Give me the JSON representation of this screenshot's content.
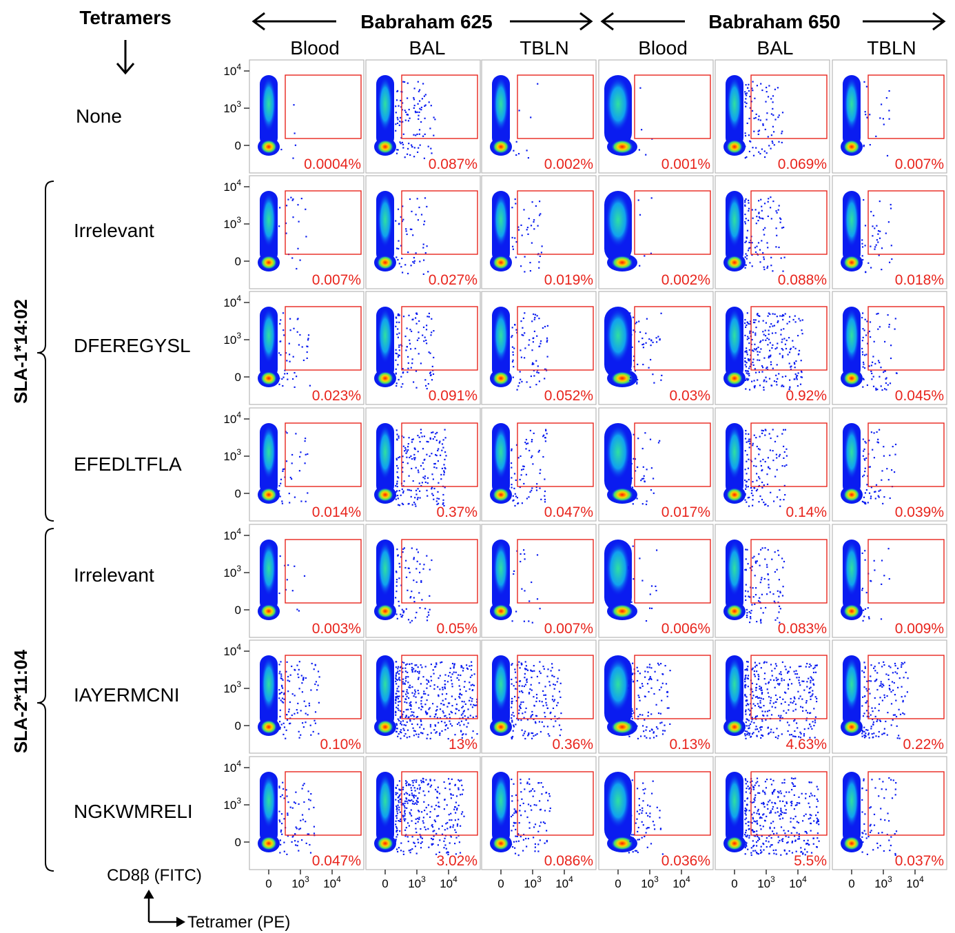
{
  "header": {
    "tetramers_label": "Tetramers",
    "animals": [
      {
        "name": "Babraham 625",
        "tissues": [
          "Blood",
          "BAL",
          "TBLN"
        ]
      },
      {
        "name": "Babraham 650",
        "tissues": [
          "Blood",
          "BAL",
          "TBLN"
        ]
      }
    ]
  },
  "groups": [
    {
      "label": "SLA-1*14:02",
      "rows": [
        1,
        3
      ]
    },
    {
      "label": "SLA-2*11:04",
      "rows": [
        4,
        6
      ]
    }
  ],
  "rows": [
    "None",
    "Irrelevant",
    "DFEREGYSL",
    "EFEDLTFLA",
    "Irrelevant",
    "IAYERMCNI",
    "NGKWMRELI"
  ],
  "axes": {
    "y_label": "CD8β (FITC)",
    "x_label": "Tetramer (PE)",
    "y_tick_labels": [
      "10",
      "10",
      "0"
    ],
    "y_tick_exponents": [
      "4",
      "3",
      ""
    ],
    "x_tick_labels": [
      "0",
      "10",
      "10"
    ],
    "x_tick_exponents": [
      "",
      "3",
      "4"
    ]
  },
  "colors": {
    "gate": "#e8241c",
    "percent_text": "#e8241c",
    "density_low": "#0a1cf0",
    "density_high": "#ee1010",
    "panel_border": "#b8b8b8"
  },
  "chart_data": {
    "type": "scatter",
    "subtype": "flow-cytometry-density-grid",
    "x_axis": "Tetramer (PE)",
    "y_axis": "CD8β (FITC)",
    "x_ticks": [
      "0",
      "10^3",
      "10^4"
    ],
    "y_ticks": [
      "0",
      "10^3",
      "10^4"
    ],
    "columns": [
      "Babraham 625 Blood",
      "Babraham 625 BAL",
      "Babraham 625 TBLN",
      "Babraham 650 Blood",
      "Babraham 650 BAL",
      "Babraham 650 TBLN"
    ],
    "row_labels": [
      "None",
      "Irrelevant (SLA-1*14:02)",
      "DFEREGYSL",
      "EFEDLTFLA",
      "Irrelevant (SLA-2*11:04)",
      "IAYERMCNI",
      "NGKWMRELI"
    ],
    "percentages": [
      [
        "0.0004%",
        "0.087%",
        "0.002%",
        "0.001%",
        "0.069%",
        "0.007%"
      ],
      [
        "0.007%",
        "0.027%",
        "0.019%",
        "0.002%",
        "0.088%",
        "0.018%"
      ],
      [
        "0.023%",
        "0.091%",
        "0.052%",
        "0.03%",
        "0.92%",
        "0.045%"
      ],
      [
        "0.014%",
        "0.37%",
        "0.047%",
        "0.017%",
        "0.14%",
        "0.039%"
      ],
      [
        "0.003%",
        "0.05%",
        "0.007%",
        "0.006%",
        "0.083%",
        "0.009%"
      ],
      [
        "0.10%",
        "13%",
        "0.36%",
        "0.13%",
        "4.63%",
        "0.22%"
      ],
      [
        "0.047%",
        "3.02%",
        "0.086%",
        "0.036%",
        "5.5%",
        "0.037%"
      ]
    ]
  }
}
